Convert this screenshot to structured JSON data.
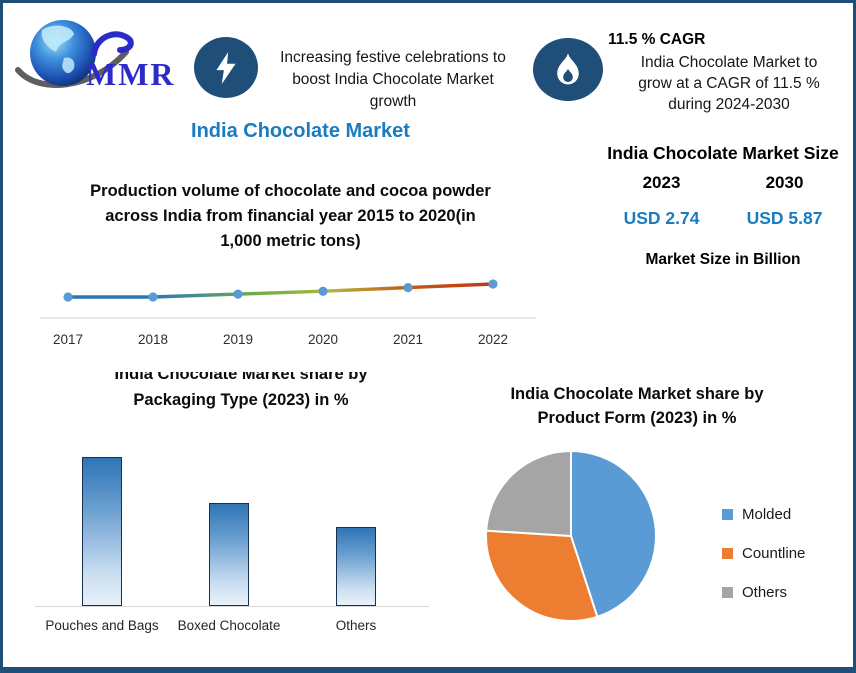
{
  "colors": {
    "navy": "#1F4E79",
    "accent_blue": "#1B7BC0",
    "logo_blue": "#2B2BC8",
    "marker_blue": "#5B9BD5",
    "orange": "#ED7D31",
    "gray": "#A5A5A5",
    "axis_gray": "#D9D9D9",
    "bar_gradient_top": "#2E75B6",
    "bar_gradient_bottom": "#E8F1FA"
  },
  "brand": {
    "logo_text": "MMR"
  },
  "header": {
    "headline_lines": [
      "Increasing festive celebrations to",
      "boost India Chocolate Market",
      "growth"
    ],
    "cagr_title": "11.5 % CAGR",
    "cagr_lines": [
      "India Chocolate Market to",
      "grow at a CAGR of 11.5 %",
      "during 2024-2030"
    ]
  },
  "page_title": "India Chocolate Market",
  "market_size_panel": {
    "title": "India Chocolate Market Size",
    "years": [
      "2023",
      "2030"
    ],
    "values": [
      "USD 2.74",
      "USD 5.87"
    ],
    "caption": "Market Size in Billion"
  },
  "chart_data": [
    {
      "type": "line",
      "title": "Production volume of chocolate and cocoa powder across India from financial year 2015 to 2020(in 1,000 metric tons)",
      "title_lines": [
        "Production volume of chocolate and cocoa powder",
        "across India from financial year 2015 to 2020(in",
        "1,000 metric tons)"
      ],
      "x": [
        "2017",
        "2018",
        "2019",
        "2020",
        "2021",
        "2022"
      ],
      "values": [
        100,
        100,
        104,
        108,
        113,
        118
      ],
      "values_note": "no y-axis shown in source; values are estimated relative units showing a slight steady rise",
      "line_gradient": [
        "#2E75B6",
        "#70AD47",
        "#AFB83C",
        "#C55A11",
        "#C3361B"
      ],
      "marker_color": "#5B9BD5",
      "grid": false,
      "legend": "none"
    },
    {
      "type": "bar",
      "title_lines": [
        "India Chocolate Market share by",
        "Packaging Type (2023) in %"
      ],
      "categories": [
        "Pouches and Bags",
        "Boxed Chocolate",
        "Others"
      ],
      "values": [
        45,
        31,
        24
      ],
      "values_note": "no y-axis shown in source; percentages estimated from bar heights",
      "ylim": [
        0,
        50
      ],
      "grid": false
    },
    {
      "type": "pie",
      "title_lines": [
        "India Chocolate Market share by",
        "Product Form (2023) in %"
      ],
      "slices": [
        {
          "label": "Molded",
          "value": 45,
          "color": "#5B9BD5"
        },
        {
          "label": "Countline",
          "value": 31,
          "color": "#ED7D31"
        },
        {
          "label": "Others",
          "value": 24,
          "color": "#A5A5A5"
        }
      ],
      "legend_position": "right"
    }
  ]
}
